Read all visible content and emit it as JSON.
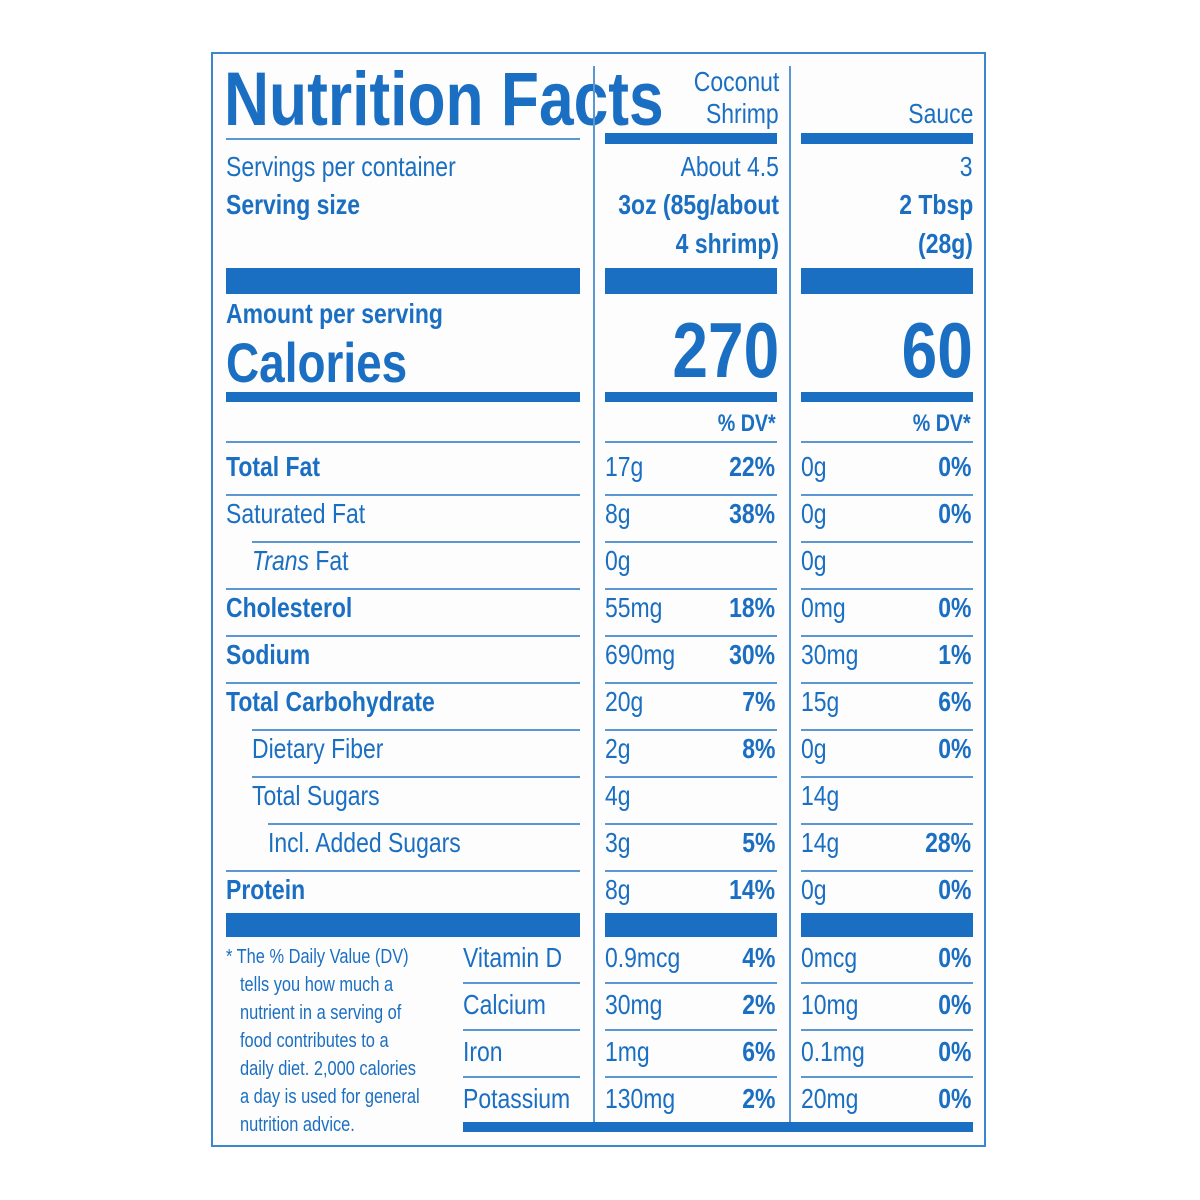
{
  "title": "Nutrition Facts",
  "servings_label": "Servings per container",
  "serving_size_label": "Serving size",
  "amount_label": "Amount per serving",
  "calories_label": "Calories",
  "dv_label": "% DV*",
  "columns": [
    {
      "name_line1": "Coconut",
      "name_line2": "Shrimp",
      "servings": "About 4.5",
      "size_line1": "3oz (85g/about",
      "size_line2": "4 shrimp)",
      "calories": "270"
    },
    {
      "name_line1": "",
      "name_line2": "Sauce",
      "servings": "3",
      "size_line1": "2 Tbsp",
      "size_line2": "(28g)",
      "calories": "60"
    }
  ],
  "nutrients": [
    {
      "name": "Total Fat",
      "bold": true,
      "indent": 0,
      "c1": "17g",
      "c1dv": "22%",
      "c2": "0g",
      "c2dv": "0%"
    },
    {
      "name": "Saturated Fat",
      "bold": false,
      "indent": 0,
      "c1": "8g",
      "c1dv": "38%",
      "c2": "0g",
      "c2dv": "0%"
    },
    {
      "name": "Trans Fat",
      "italic_prefix": "Trans",
      "suffix": " Fat",
      "bold": false,
      "indent": 1,
      "c1": "0g",
      "c1dv": "",
      "c2": "0g",
      "c2dv": ""
    },
    {
      "name": "Cholesterol",
      "bold": true,
      "indent": 0,
      "c1": "55mg",
      "c1dv": "18%",
      "c2": "0mg",
      "c2dv": "0%"
    },
    {
      "name": "Sodium",
      "bold": true,
      "indent": 0,
      "c1": "690mg",
      "c1dv": "30%",
      "c2": "30mg",
      "c2dv": "1%"
    },
    {
      "name": "Total Carbohydrate",
      "bold": true,
      "indent": 0,
      "c1": "20g",
      "c1dv": "7%",
      "c2": "15g",
      "c2dv": "6%"
    },
    {
      "name": "Dietary Fiber",
      "bold": false,
      "indent": 1,
      "c1": "2g",
      "c1dv": "8%",
      "c2": "0g",
      "c2dv": "0%"
    },
    {
      "name": "Total Sugars",
      "bold": false,
      "indent": 1,
      "c1": "4g",
      "c1dv": "",
      "c2": "14g",
      "c2dv": ""
    },
    {
      "name": "Incl. Added Sugars",
      "bold": false,
      "indent": 2,
      "c1": "3g",
      "c1dv": "5%",
      "c2": "14g",
      "c2dv": "28%"
    },
    {
      "name": "Protein",
      "bold": true,
      "indent": 0,
      "c1": "8g",
      "c1dv": "14%",
      "c2": "0g",
      "c2dv": "0%"
    }
  ],
  "vitamins": [
    {
      "name": "Vitamin D",
      "c1": "0.9mcg",
      "c1dv": "4%",
      "c2": "0mcg",
      "c2dv": "0%"
    },
    {
      "name": "Calcium",
      "c1": "30mg",
      "c1dv": "2%",
      "c2": "10mg",
      "c2dv": "0%"
    },
    {
      "name": "Iron",
      "c1": "1mg",
      "c1dv": "6%",
      "c2": "0.1mg",
      "c2dv": "0%"
    },
    {
      "name": "Potassium",
      "c1": "130mg",
      "c1dv": "2%",
      "c2": "20mg",
      "c2dv": "0%"
    }
  ],
  "footnote": [
    "* The % Daily Value (DV)",
    "tells you how much a",
    "nutrient in a serving of",
    "food contributes to a",
    "daily diet. 2,000 calories",
    "a day is used for general",
    "nutrition advice."
  ],
  "colors": {
    "ink": "#1b6fc2"
  }
}
